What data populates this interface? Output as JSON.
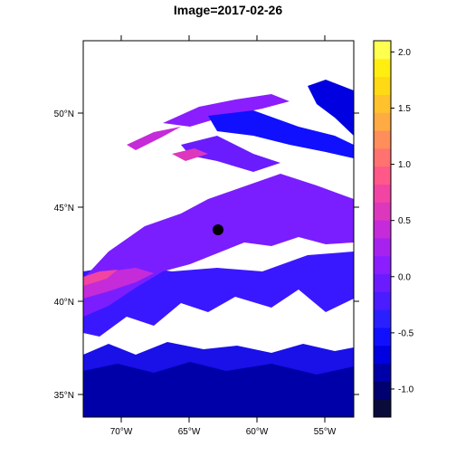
{
  "title": "Image=2017-02-26",
  "map": {
    "x_ticks": [
      "70°W",
      "65°W",
      "60°W",
      "55°W"
    ],
    "y_ticks": [
      "50°N",
      "45°N",
      "40°N",
      "35°N"
    ],
    "marker": "black dot"
  },
  "colorbar": {
    "tick_labels": [
      "2.0",
      "1.5",
      "1.0",
      "0.5",
      "0.0",
      "-0.5",
      "-1.0"
    ],
    "range": [
      -1.25,
      2.1
    ],
    "colors": [
      "#0b0b3b",
      "#000070",
      "#0000a8",
      "#0000e0",
      "#1010ff",
      "#2a20ff",
      "#4a1cff",
      "#6a1cff",
      "#8a1eff",
      "#a822ef",
      "#c52bd8",
      "#dd37bd",
      "#f244a2",
      "#ff5889",
      "#ff7270",
      "#ff8e5a",
      "#ffab44",
      "#ffc22d",
      "#ffd916",
      "#ffee10",
      "#ffff50"
    ]
  }
}
